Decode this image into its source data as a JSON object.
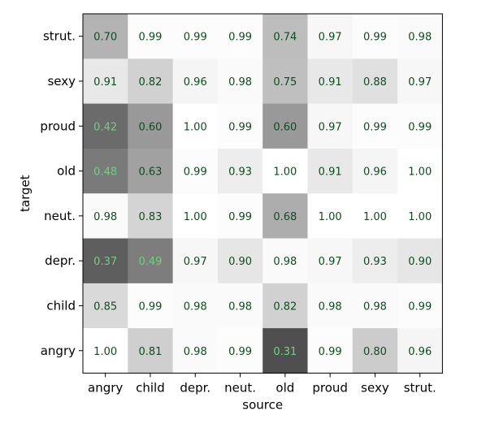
{
  "chart_data": {
    "type": "heatmap",
    "title": "",
    "xlabel": "source",
    "ylabel": "target",
    "x_categories": [
      "angry",
      "child",
      "depr.",
      "neut.",
      "old",
      "proud",
      "sexy",
      "strut."
    ],
    "y_categories": [
      "strut.",
      "sexy",
      "proud",
      "old",
      "neut.",
      "depr.",
      "child",
      "angry"
    ],
    "values": [
      [
        0.7,
        0.99,
        0.99,
        0.99,
        0.74,
        0.97,
        0.99,
        0.98
      ],
      [
        0.91,
        0.82,
        0.96,
        0.98,
        0.75,
        0.91,
        0.88,
        0.97
      ],
      [
        0.42,
        0.6,
        1.0,
        0.99,
        0.6,
        0.97,
        0.99,
        0.99
      ],
      [
        0.48,
        0.63,
        0.99,
        0.93,
        1.0,
        0.91,
        0.96,
        1.0
      ],
      [
        0.98,
        0.83,
        1.0,
        0.99,
        0.68,
        1.0,
        1.0,
        1.0
      ],
      [
        0.37,
        0.49,
        0.97,
        0.9,
        0.98,
        0.97,
        0.93,
        0.9
      ],
      [
        0.85,
        0.99,
        0.98,
        0.98,
        0.82,
        0.98,
        0.98,
        0.99
      ],
      [
        1.0,
        0.81,
        0.98,
        0.99,
        0.31,
        0.99,
        0.8,
        0.96
      ]
    ],
    "value_range": [
      0.0,
      1.0
    ],
    "colormap": "grayscale (low = dark, high = white)",
    "colors": {
      "text_on_light": "#0f4d1f",
      "text_on_dark": "#6fd17f",
      "axis": "#000000"
    },
    "grid": false,
    "legend": "none"
  }
}
